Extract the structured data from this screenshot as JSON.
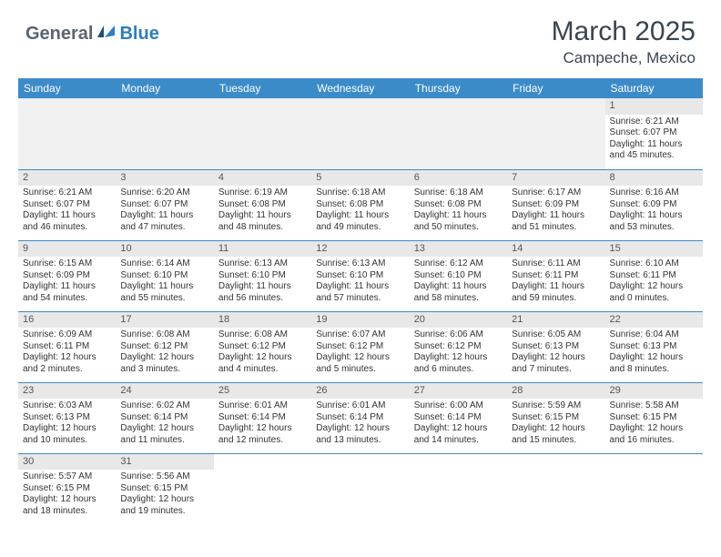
{
  "logo": {
    "part1": "General",
    "part2": "Blue"
  },
  "title": "March 2025",
  "location": "Campeche, Mexico",
  "days_of_week": [
    "Sunday",
    "Monday",
    "Tuesday",
    "Wednesday",
    "Thursday",
    "Friday",
    "Saturday"
  ],
  "colors": {
    "header_bg": "#3b8bc9",
    "header_text": "#ffffff",
    "daynum_bg": "#e8e8e8",
    "border": "#3b8bc9",
    "logo_gray": "#5a6570",
    "logo_blue": "#2b7ec2"
  },
  "weeks": [
    [
      {
        "empty": true
      },
      {
        "empty": true
      },
      {
        "empty": true
      },
      {
        "empty": true
      },
      {
        "empty": true
      },
      {
        "empty": true
      },
      {
        "day": "1",
        "sunrise": "Sunrise: 6:21 AM",
        "sunset": "Sunset: 6:07 PM",
        "daylight": "Daylight: 11 hours and 45 minutes."
      }
    ],
    [
      {
        "day": "2",
        "sunrise": "Sunrise: 6:21 AM",
        "sunset": "Sunset: 6:07 PM",
        "daylight": "Daylight: 11 hours and 46 minutes."
      },
      {
        "day": "3",
        "sunrise": "Sunrise: 6:20 AM",
        "sunset": "Sunset: 6:07 PM",
        "daylight": "Daylight: 11 hours and 47 minutes."
      },
      {
        "day": "4",
        "sunrise": "Sunrise: 6:19 AM",
        "sunset": "Sunset: 6:08 PM",
        "daylight": "Daylight: 11 hours and 48 minutes."
      },
      {
        "day": "5",
        "sunrise": "Sunrise: 6:18 AM",
        "sunset": "Sunset: 6:08 PM",
        "daylight": "Daylight: 11 hours and 49 minutes."
      },
      {
        "day": "6",
        "sunrise": "Sunrise: 6:18 AM",
        "sunset": "Sunset: 6:08 PM",
        "daylight": "Daylight: 11 hours and 50 minutes."
      },
      {
        "day": "7",
        "sunrise": "Sunrise: 6:17 AM",
        "sunset": "Sunset: 6:09 PM",
        "daylight": "Daylight: 11 hours and 51 minutes."
      },
      {
        "day": "8",
        "sunrise": "Sunrise: 6:16 AM",
        "sunset": "Sunset: 6:09 PM",
        "daylight": "Daylight: 11 hours and 53 minutes."
      }
    ],
    [
      {
        "day": "9",
        "sunrise": "Sunrise: 6:15 AM",
        "sunset": "Sunset: 6:09 PM",
        "daylight": "Daylight: 11 hours and 54 minutes."
      },
      {
        "day": "10",
        "sunrise": "Sunrise: 6:14 AM",
        "sunset": "Sunset: 6:10 PM",
        "daylight": "Daylight: 11 hours and 55 minutes."
      },
      {
        "day": "11",
        "sunrise": "Sunrise: 6:13 AM",
        "sunset": "Sunset: 6:10 PM",
        "daylight": "Daylight: 11 hours and 56 minutes."
      },
      {
        "day": "12",
        "sunrise": "Sunrise: 6:13 AM",
        "sunset": "Sunset: 6:10 PM",
        "daylight": "Daylight: 11 hours and 57 minutes."
      },
      {
        "day": "13",
        "sunrise": "Sunrise: 6:12 AM",
        "sunset": "Sunset: 6:10 PM",
        "daylight": "Daylight: 11 hours and 58 minutes."
      },
      {
        "day": "14",
        "sunrise": "Sunrise: 6:11 AM",
        "sunset": "Sunset: 6:11 PM",
        "daylight": "Daylight: 11 hours and 59 minutes."
      },
      {
        "day": "15",
        "sunrise": "Sunrise: 6:10 AM",
        "sunset": "Sunset: 6:11 PM",
        "daylight": "Daylight: 12 hours and 0 minutes."
      }
    ],
    [
      {
        "day": "16",
        "sunrise": "Sunrise: 6:09 AM",
        "sunset": "Sunset: 6:11 PM",
        "daylight": "Daylight: 12 hours and 2 minutes."
      },
      {
        "day": "17",
        "sunrise": "Sunrise: 6:08 AM",
        "sunset": "Sunset: 6:12 PM",
        "daylight": "Daylight: 12 hours and 3 minutes."
      },
      {
        "day": "18",
        "sunrise": "Sunrise: 6:08 AM",
        "sunset": "Sunset: 6:12 PM",
        "daylight": "Daylight: 12 hours and 4 minutes."
      },
      {
        "day": "19",
        "sunrise": "Sunrise: 6:07 AM",
        "sunset": "Sunset: 6:12 PM",
        "daylight": "Daylight: 12 hours and 5 minutes."
      },
      {
        "day": "20",
        "sunrise": "Sunrise: 6:06 AM",
        "sunset": "Sunset: 6:12 PM",
        "daylight": "Daylight: 12 hours and 6 minutes."
      },
      {
        "day": "21",
        "sunrise": "Sunrise: 6:05 AM",
        "sunset": "Sunset: 6:13 PM",
        "daylight": "Daylight: 12 hours and 7 minutes."
      },
      {
        "day": "22",
        "sunrise": "Sunrise: 6:04 AM",
        "sunset": "Sunset: 6:13 PM",
        "daylight": "Daylight: 12 hours and 8 minutes."
      }
    ],
    [
      {
        "day": "23",
        "sunrise": "Sunrise: 6:03 AM",
        "sunset": "Sunset: 6:13 PM",
        "daylight": "Daylight: 12 hours and 10 minutes."
      },
      {
        "day": "24",
        "sunrise": "Sunrise: 6:02 AM",
        "sunset": "Sunset: 6:14 PM",
        "daylight": "Daylight: 12 hours and 11 minutes."
      },
      {
        "day": "25",
        "sunrise": "Sunrise: 6:01 AM",
        "sunset": "Sunset: 6:14 PM",
        "daylight": "Daylight: 12 hours and 12 minutes."
      },
      {
        "day": "26",
        "sunrise": "Sunrise: 6:01 AM",
        "sunset": "Sunset: 6:14 PM",
        "daylight": "Daylight: 12 hours and 13 minutes."
      },
      {
        "day": "27",
        "sunrise": "Sunrise: 6:00 AM",
        "sunset": "Sunset: 6:14 PM",
        "daylight": "Daylight: 12 hours and 14 minutes."
      },
      {
        "day": "28",
        "sunrise": "Sunrise: 5:59 AM",
        "sunset": "Sunset: 6:15 PM",
        "daylight": "Daylight: 12 hours and 15 minutes."
      },
      {
        "day": "29",
        "sunrise": "Sunrise: 5:58 AM",
        "sunset": "Sunset: 6:15 PM",
        "daylight": "Daylight: 12 hours and 16 minutes."
      }
    ],
    [
      {
        "day": "30",
        "sunrise": "Sunrise: 5:57 AM",
        "sunset": "Sunset: 6:15 PM",
        "daylight": "Daylight: 12 hours and 18 minutes."
      },
      {
        "day": "31",
        "sunrise": "Sunrise: 5:56 AM",
        "sunset": "Sunset: 6:15 PM",
        "daylight": "Daylight: 12 hours and 19 minutes."
      },
      {
        "empty": true
      },
      {
        "empty": true
      },
      {
        "empty": true
      },
      {
        "empty": true
      },
      {
        "empty": true
      }
    ]
  ]
}
